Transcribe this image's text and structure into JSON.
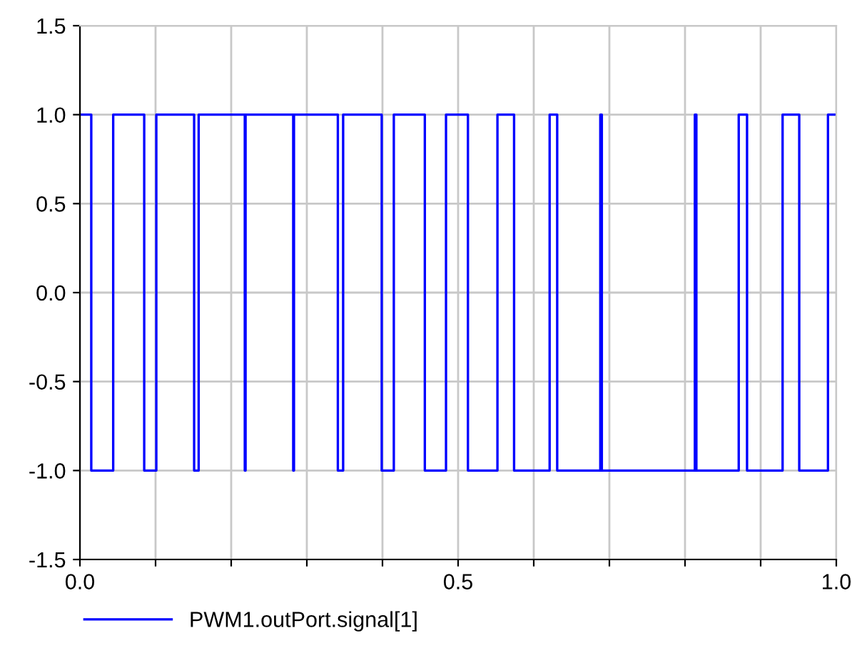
{
  "chart_data": {
    "type": "step",
    "xlim": [
      0,
      1
    ],
    "ylim": [
      -1.5,
      1.5
    ],
    "xticks": [
      {
        "value": 0,
        "label": "0.0"
      },
      {
        "value": 0.1,
        "label": null
      },
      {
        "value": 0.2,
        "label": null
      },
      {
        "value": 0.3,
        "label": null
      },
      {
        "value": 0.4,
        "label": null
      },
      {
        "value": 0.5,
        "label": "0.5"
      },
      {
        "value": 0.6,
        "label": null
      },
      {
        "value": 0.7,
        "label": null
      },
      {
        "value": 0.8,
        "label": null
      },
      {
        "value": 0.9,
        "label": null
      },
      {
        "value": 1,
        "label": "1.0"
      }
    ],
    "yticks": [
      {
        "value": -1.5,
        "label": "-1.5"
      },
      {
        "value": -1,
        "label": "-1.0"
      },
      {
        "value": -0.5,
        "label": "-0.5"
      },
      {
        "value": 0,
        "label": "0.0"
      },
      {
        "value": 0.5,
        "label": "0.5"
      },
      {
        "value": 1,
        "label": "1.0"
      },
      {
        "value": 1.5,
        "label": "1.5"
      }
    ],
    "grid": true,
    "legend": "bottom left",
    "series": [
      {
        "name": "PWM1.outPort.signal[1]",
        "color": "#0000ff",
        "x": [
          0,
          0.015,
          0.044,
          0.085,
          0.101,
          0.151,
          0.157,
          0.218,
          0.219,
          0.282,
          0.283,
          0.341,
          0.348,
          0.399,
          0.415,
          0.456,
          0.484,
          0.513,
          0.552,
          0.574,
          0.621,
          0.631,
          0.688,
          0.69,
          0.813,
          0.815,
          0.871,
          0.882,
          0.929,
          0.951,
          0.989,
          1
        ],
        "values": [
          1,
          -1,
          1,
          -1,
          1,
          -1,
          1,
          -1,
          1,
          -1,
          1,
          -1,
          1,
          -1,
          1,
          -1,
          1,
          -1,
          1,
          -1,
          1,
          -1,
          1,
          -1,
          1,
          -1,
          1,
          -1,
          1,
          -1,
          1,
          1
        ]
      }
    ]
  }
}
